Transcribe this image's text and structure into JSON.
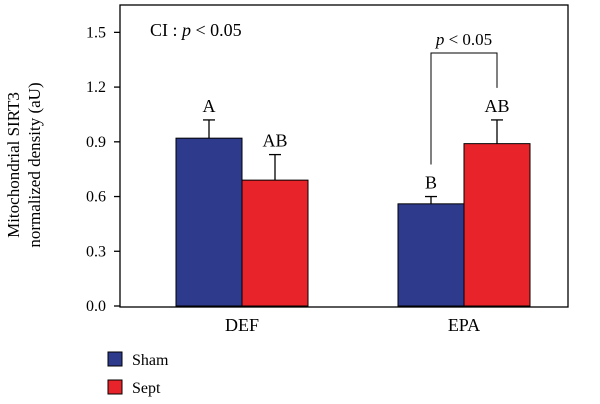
{
  "chart_data": {
    "type": "bar",
    "ylabel_line1": "Mitochondrial SIRT3",
    "ylabel_line2": "normalized density (aU)",
    "xlabel": "",
    "categories": [
      "DEF",
      "EPA"
    ],
    "ylim": [
      0,
      1.65
    ],
    "yticks": [
      "0.0",
      "0.3",
      "0.6",
      "0.9",
      "1.2",
      "1.5"
    ],
    "series": [
      {
        "name": "Sham",
        "color": "#2e3a8c",
        "values": [
          0.92,
          0.56
        ],
        "errors": [
          0.1,
          0.04
        ]
      },
      {
        "name": "Sept",
        "color": "#e8232a",
        "values": [
          0.69,
          0.89
        ],
        "errors": [
          0.14,
          0.13
        ]
      }
    ],
    "bar_letters": [
      [
        "A",
        "AB"
      ],
      [
        "B",
        "AB"
      ]
    ],
    "annotation": {
      "prefix": "CI : ",
      "p": "p",
      "suffix": " < 0.05"
    },
    "bracket": {
      "category_index": 1,
      "p": "p",
      "suffix": " < 0.05"
    },
    "legend_position": "bottom-left"
  }
}
